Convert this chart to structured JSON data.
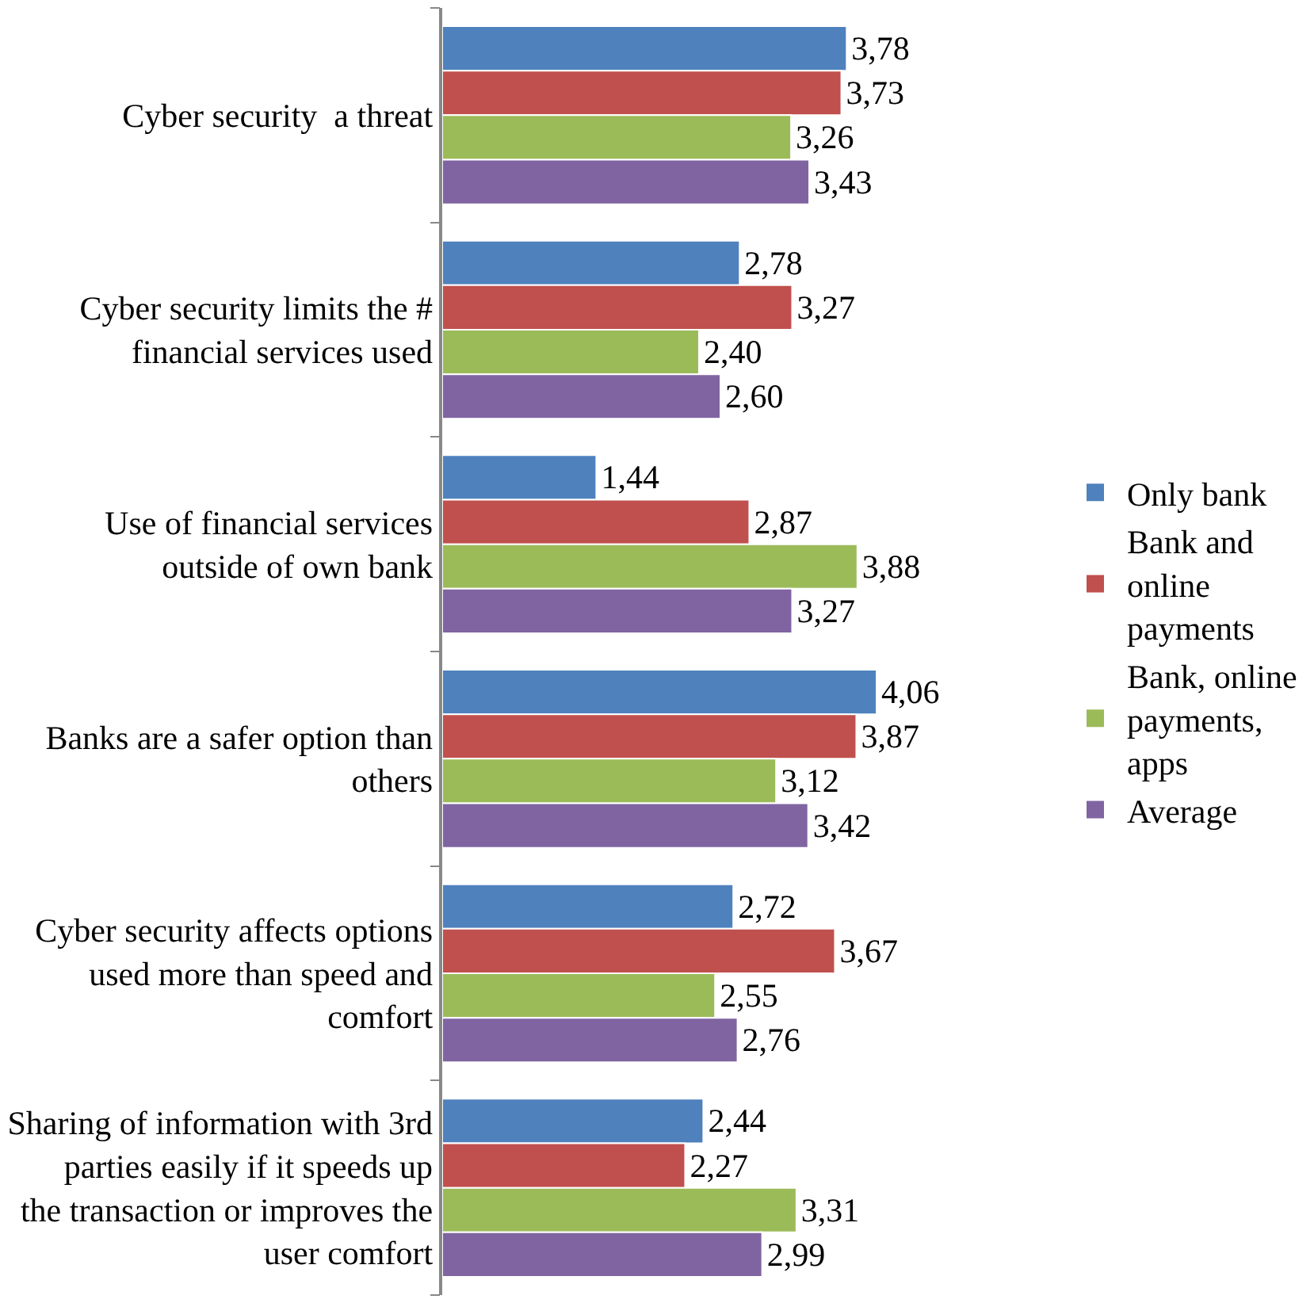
{
  "chart_data": {
    "type": "bar",
    "orientation": "horizontal",
    "legend": "right",
    "categories": [
      "Cyber security  a threat",
      "Cyber security limits the # financial services used",
      "Use of financial services outside of own bank",
      "Banks are a safer option than others",
      "Cyber security affects options used more than speed and comfort",
      "Sharing of information with 3rd parties easily if it speeds up the transaction or improves the user comfort"
    ],
    "series": [
      {
        "name": "Only bank",
        "color": "#4f81bd",
        "values": [
          3.78,
          2.78,
          1.44,
          4.06,
          2.72,
          2.44
        ],
        "value_labels": [
          "3,78",
          "2,78",
          "1,44",
          "4,06",
          "2,72",
          "2,44"
        ]
      },
      {
        "name": "Bank and online payments",
        "color": "#c0504d",
        "values": [
          3.73,
          3.27,
          2.87,
          3.87,
          3.67,
          2.27
        ],
        "value_labels": [
          "3,73",
          "3,27",
          "2,87",
          "3,87",
          "3,67",
          "2,27"
        ]
      },
      {
        "name": "Bank, online payments, apps",
        "color": "#9bbb59",
        "values": [
          3.26,
          2.4,
          3.88,
          3.12,
          2.55,
          3.31
        ],
        "value_labels": [
          "3,26",
          "2,40",
          "3,88",
          "3,12",
          "2,55",
          "3,31"
        ]
      },
      {
        "name": "Average",
        "color": "#8064a2",
        "values": [
          3.43,
          2.6,
          3.27,
          3.42,
          2.76,
          2.99
        ],
        "value_labels": [
          "3,43",
          "2,60",
          "3,27",
          "3,42",
          "2,76",
          "2,99"
        ]
      }
    ]
  }
}
